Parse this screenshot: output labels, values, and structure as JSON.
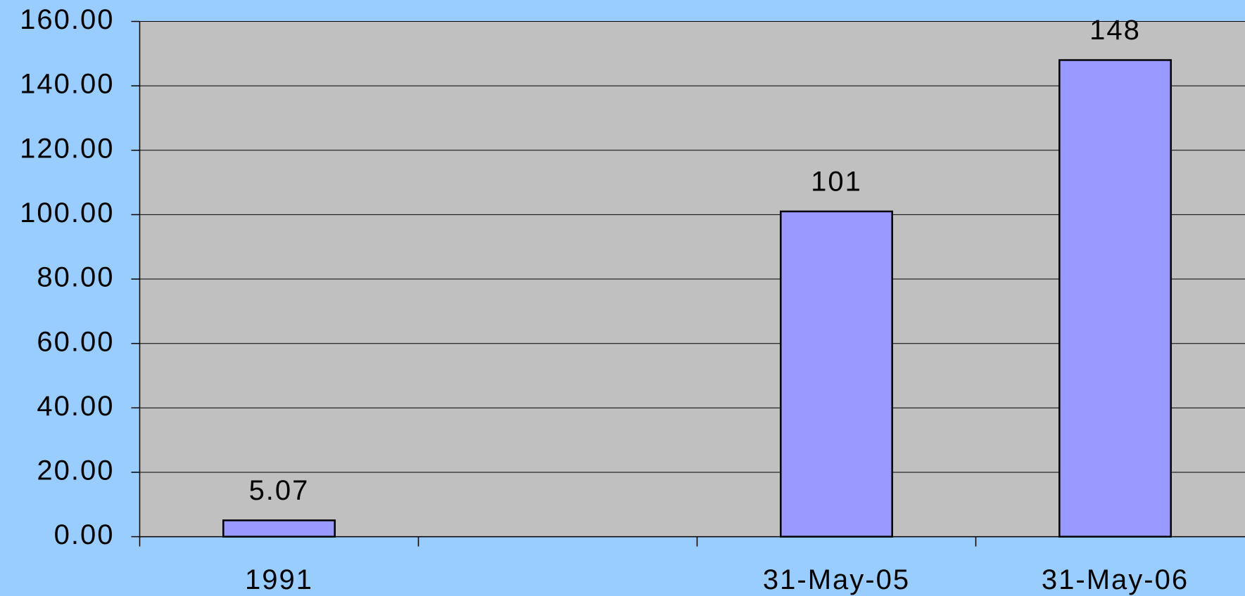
{
  "chart_data": {
    "type": "bar",
    "categories": [
      "1991",
      null,
      "31-May-05",
      "31-May-06"
    ],
    "values": [
      5.07,
      null,
      101,
      148
    ],
    "color": "#9999ff",
    "ylim": [
      0,
      160
    ],
    "yticks": [
      {
        "value": 0,
        "label": "0.00"
      },
      {
        "value": 20,
        "label": "20.00"
      },
      {
        "value": 40,
        "label": "40.00"
      },
      {
        "value": 60,
        "label": "60.00"
      },
      {
        "value": 80,
        "label": "80.00"
      },
      {
        "value": 100,
        "label": "100.00"
      },
      {
        "value": 120,
        "label": "120.00"
      },
      {
        "value": 140,
        "label": "140.00"
      },
      {
        "value": 160,
        "label": "160.00"
      }
    ],
    "grid": true
  }
}
